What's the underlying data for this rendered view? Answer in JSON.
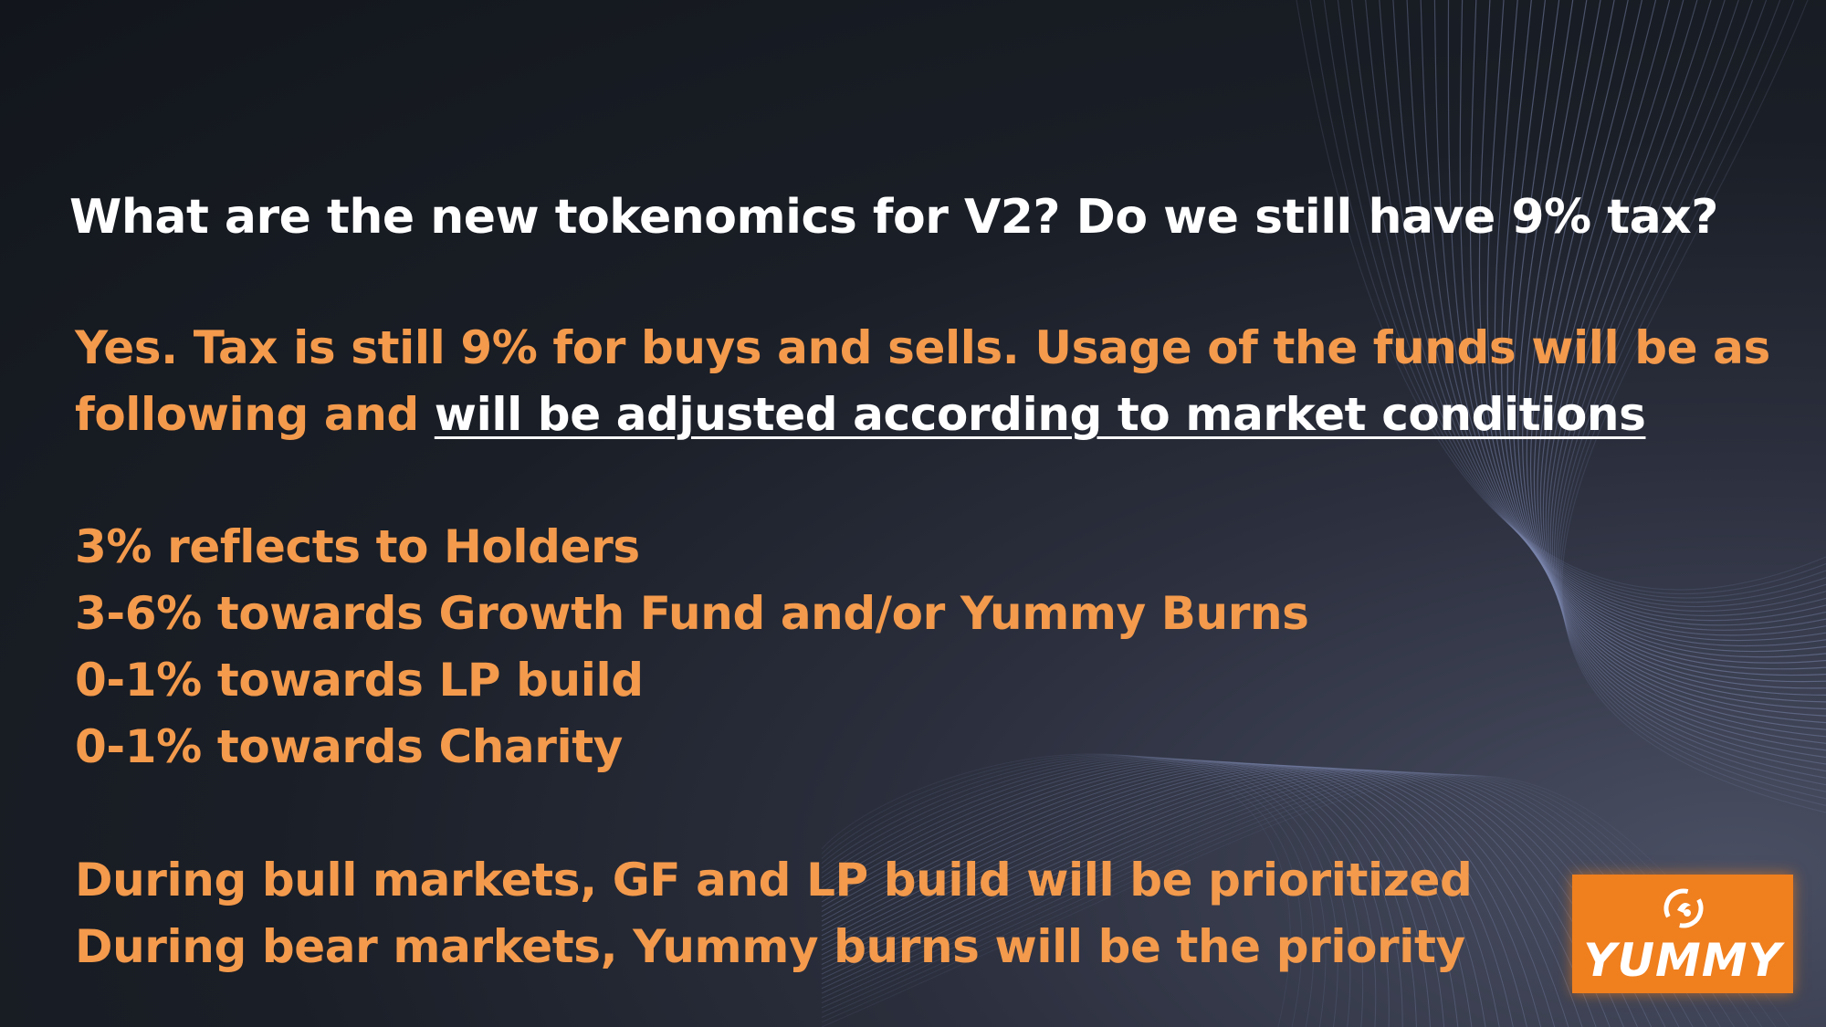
{
  "slide": {
    "question": "What are the new tokenomics for V2? Do we still have 9% tax?",
    "answer": {
      "line1": "Yes. Tax is still 9% for buys and sells. Usage of the funds will be as",
      "line2_prefix": "following and ",
      "line2_underlined": "will be adjusted according to market conditions"
    },
    "allocations": [
      "3% reflects to Holders",
      "3-6% towards Growth Fund and/or Yummy Burns",
      "0-1% towards LP build",
      "0-1% towards Charity"
    ],
    "notes": [
      "During bull markets, GF and LP build will be prioritized",
      "During bear markets, Yummy burns will be the priority"
    ]
  },
  "logo": {
    "text": "YUMMY",
    "icon": "yummy-logo-icon",
    "color": "#f07f1e"
  },
  "colors": {
    "question_text": "#ffffff",
    "answer_text": "#f39a4c",
    "underlined_text": "#ffffff",
    "background": "#12161c",
    "lines": "#7b86ad"
  }
}
